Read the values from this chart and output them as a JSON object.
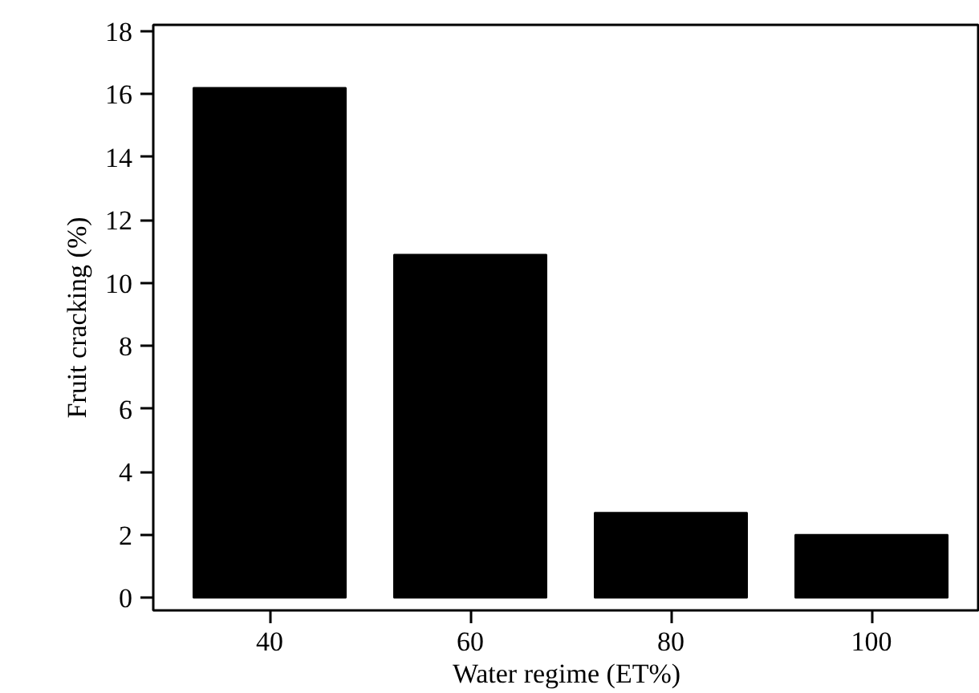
{
  "chart_data": {
    "type": "bar",
    "xlabel": "Water regime (ET%)",
    "ylabel": "Fruit cracking (%)",
    "categories": [
      "40",
      "60",
      "80",
      "100"
    ],
    "values": [
      16.2,
      10.9,
      2.7,
      2.0
    ],
    "color": "#000000",
    "ylim": [
      -0.4,
      18.2
    ],
    "yticks": [
      0,
      2,
      4,
      6,
      8,
      10,
      12,
      14,
      16,
      18
    ],
    "grid": false
  }
}
